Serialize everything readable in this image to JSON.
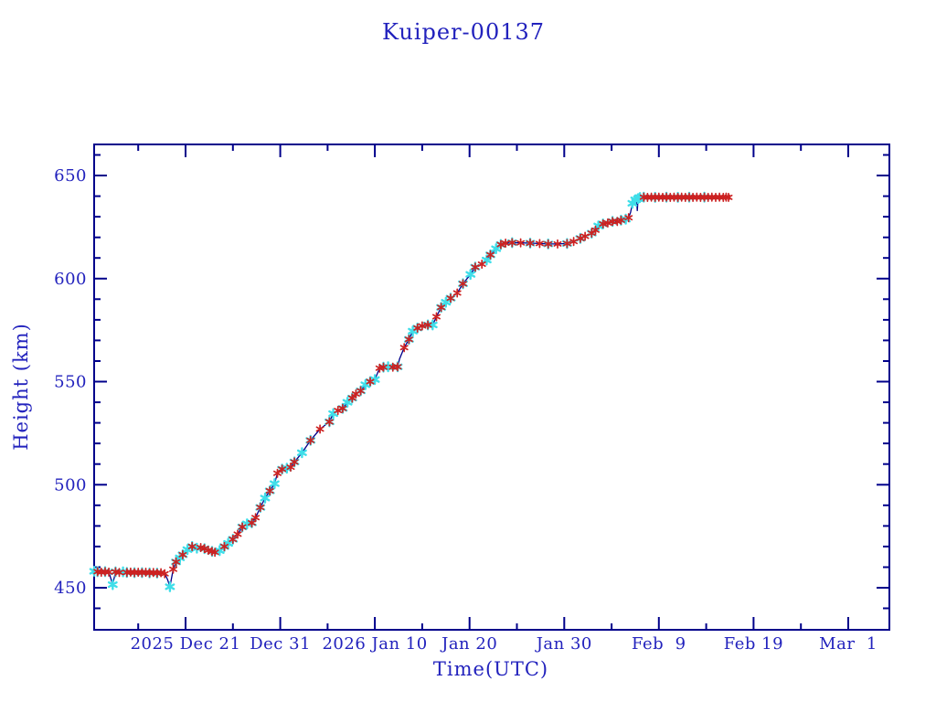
{
  "chart_data": {
    "type": "line",
    "title": "Kuiper-00137",
    "xlabel": "Time(UTC)",
    "ylabel": "Height (km)",
    "grid": false,
    "legend": null,
    "x_axis": {
      "unit": "days relative to 2025 Dec 21 00:00 UTC",
      "range": [
        -9.65,
        74.35
      ],
      "major_ticks": [
        {
          "t": 0,
          "label": "2025 Dec 21"
        },
        {
          "t": 10,
          "label": "Dec 31"
        },
        {
          "t": 20,
          "label": "2026 Jan 10"
        },
        {
          "t": 30,
          "label": "Jan 20"
        },
        {
          "t": 40,
          "label": "Jan 30"
        },
        {
          "t": 50,
          "label": "Feb  9"
        },
        {
          "t": 60,
          "label": "Feb 19"
        },
        {
          "t": 70,
          "label": "Mar  1"
        }
      ],
      "minor_ticks_t": [
        -5,
        5,
        15,
        25,
        35,
        45,
        55,
        65
      ]
    },
    "y_axis": {
      "unit": "km",
      "range": [
        430,
        665
      ],
      "major_ticks": [
        {
          "km": 450,
          "label": "450"
        },
        {
          "km": 500,
          "label": "500"
        },
        {
          "km": 550,
          "label": "550"
        },
        {
          "km": 600,
          "label": "600"
        },
        {
          "km": 650,
          "label": "650"
        }
      ],
      "minor_tick_step": 10
    },
    "colors": {
      "background": "#ffffff",
      "axis": "#00008b",
      "text": "#2222bd",
      "line": "#00008b",
      "marker_red": "#cc2222",
      "marker_cyan": "#3fdee9"
    },
    "series": [
      {
        "name": "height-km",
        "marker_types": {
          "r": "red asterisk",
          "c": "cyan asterisk",
          "rc": "red asterisk over cyan asterisk",
          "l": "line only"
        },
        "points_format": "[days_since_2025_Dec_21_UTC, height_km, marker]",
        "points": [
          [
            -9.65,
            458.0,
            "c"
          ],
          [
            -9.3,
            457.8,
            "rc"
          ],
          [
            -8.9,
            457.5,
            "r"
          ],
          [
            -8.5,
            457.8,
            "rc"
          ],
          [
            -8.1,
            457.6,
            "r"
          ],
          [
            -7.7,
            451.5,
            "c"
          ],
          [
            -7.4,
            457.7,
            "rc"
          ],
          [
            -7.0,
            457.4,
            "r"
          ],
          [
            -6.6,
            457.7,
            "c"
          ],
          [
            -6.2,
            457.4,
            "rc"
          ],
          [
            -5.8,
            457.6,
            "r"
          ],
          [
            -5.4,
            457.3,
            "rc"
          ],
          [
            -5.0,
            457.5,
            "r"
          ],
          [
            -4.6,
            457.3,
            "rc"
          ],
          [
            -4.2,
            457.5,
            "r"
          ],
          [
            -3.8,
            457.2,
            "rc"
          ],
          [
            -3.4,
            457.4,
            "r"
          ],
          [
            -3.0,
            457.1,
            "rc"
          ],
          [
            -2.6,
            457.3,
            "r"
          ],
          [
            -2.2,
            456.8,
            "r"
          ],
          [
            -1.9,
            454.0,
            "l"
          ],
          [
            -1.65,
            450.5,
            "c"
          ],
          [
            -1.3,
            459.0,
            "r"
          ],
          [
            -1.0,
            462.5,
            "rc"
          ],
          [
            -0.6,
            464.5,
            "c"
          ],
          [
            -0.3,
            466.0,
            "rc"
          ],
          [
            0.2,
            468.5,
            "c"
          ],
          [
            0.7,
            470.0,
            "rc"
          ],
          [
            1.2,
            469.2,
            "c"
          ],
          [
            1.6,
            469.5,
            "r"
          ],
          [
            2.0,
            469.0,
            "rc"
          ],
          [
            2.4,
            468.2,
            "r"
          ],
          [
            2.8,
            467.6,
            "rc"
          ],
          [
            3.1,
            467.2,
            "r"
          ],
          [
            3.6,
            468.0,
            "c"
          ],
          [
            4.1,
            470.0,
            "rc"
          ],
          [
            4.5,
            471.5,
            "c"
          ],
          [
            5.0,
            473.5,
            "rc"
          ],
          [
            5.5,
            476.0,
            "r"
          ],
          [
            6.0,
            479.5,
            "rc"
          ],
          [
            6.5,
            481.0,
            "c"
          ],
          [
            7.0,
            481.5,
            "rc"
          ],
          [
            7.4,
            484.0,
            "r"
          ],
          [
            7.9,
            489.0,
            "rc"
          ],
          [
            8.4,
            493.5,
            "c"
          ],
          [
            8.9,
            497.0,
            "rc"
          ],
          [
            9.4,
            500.5,
            "c"
          ],
          [
            9.7,
            505.5,
            "r"
          ],
          [
            10.2,
            507.5,
            "rc"
          ],
          [
            10.7,
            508.0,
            "c"
          ],
          [
            11.1,
            508.5,
            "r"
          ],
          [
            11.5,
            511.0,
            "rc"
          ],
          [
            12.3,
            515.5,
            "c"
          ],
          [
            13.2,
            521.5,
            "rc"
          ],
          [
            14.2,
            527.0,
            "r"
          ],
          [
            15.2,
            530.5,
            "rc"
          ],
          [
            15.6,
            534.5,
            "c"
          ],
          [
            16.1,
            536.0,
            "r"
          ],
          [
            16.6,
            537.0,
            "rc"
          ],
          [
            17.1,
            540.0,
            "c"
          ],
          [
            17.6,
            542.0,
            "rc"
          ],
          [
            18.0,
            544.0,
            "r"
          ],
          [
            18.5,
            545.5,
            "rc"
          ],
          [
            19.0,
            548.5,
            "c"
          ],
          [
            19.5,
            550.0,
            "rc"
          ],
          [
            20.0,
            551.0,
            "c"
          ],
          [
            20.5,
            556.5,
            "r"
          ],
          [
            20.9,
            557.0,
            "rc"
          ],
          [
            21.4,
            557.2,
            "c"
          ],
          [
            21.9,
            557.0,
            "r"
          ],
          [
            22.4,
            557.2,
            "rc"
          ],
          [
            22.6,
            561.0,
            "l"
          ],
          [
            23.1,
            566.5,
            "r"
          ],
          [
            23.6,
            570.5,
            "rc"
          ],
          [
            24.0,
            574.5,
            "c"
          ],
          [
            24.5,
            576.0,
            "rc"
          ],
          [
            25.0,
            577.0,
            "r"
          ],
          [
            25.6,
            577.5,
            "rc"
          ],
          [
            26.1,
            577.5,
            "c"
          ],
          [
            26.5,
            581.5,
            "r"
          ],
          [
            27.0,
            586.0,
            "rc"
          ],
          [
            27.5,
            588.5,
            "c"
          ],
          [
            28.0,
            590.5,
            "rc"
          ],
          [
            28.7,
            593.0,
            "r"
          ],
          [
            29.3,
            597.5,
            "rc"
          ],
          [
            30.1,
            602.0,
            "c"
          ],
          [
            30.6,
            605.5,
            "rc"
          ],
          [
            31.3,
            607.0,
            "r"
          ],
          [
            31.8,
            609.0,
            "c"
          ],
          [
            32.2,
            611.5,
            "rc"
          ],
          [
            32.8,
            614.5,
            "c"
          ],
          [
            33.3,
            616.5,
            "rc"
          ],
          [
            33.8,
            617.2,
            "r"
          ],
          [
            34.5,
            617.4,
            "rc"
          ],
          [
            35.4,
            617.3,
            "r"
          ],
          [
            36.4,
            617.2,
            "rc"
          ],
          [
            37.4,
            617.0,
            "r"
          ],
          [
            38.3,
            616.8,
            "rc"
          ],
          [
            39.3,
            616.8,
            "r"
          ],
          [
            40.3,
            617.0,
            "rc"
          ],
          [
            41.0,
            618.0,
            "r"
          ],
          [
            41.7,
            619.5,
            "rc"
          ],
          [
            42.2,
            620.5,
            "r"
          ],
          [
            42.9,
            622.0,
            "rc"
          ],
          [
            43.3,
            623.5,
            "r"
          ],
          [
            43.6,
            625.5,
            "c"
          ],
          [
            44.1,
            626.5,
            "rc"
          ],
          [
            44.6,
            627.0,
            "r"
          ],
          [
            45.1,
            627.7,
            "rc"
          ],
          [
            45.6,
            627.7,
            "r"
          ],
          [
            46.0,
            628.3,
            "rc"
          ],
          [
            46.5,
            628.8,
            "c"
          ],
          [
            46.8,
            629.5,
            "r"
          ],
          [
            47.0,
            632.0,
            "l"
          ],
          [
            47.2,
            636.5,
            "c"
          ],
          [
            47.5,
            638.2,
            "c"
          ],
          [
            47.65,
            638.8,
            "l"
          ],
          [
            47.72,
            632.8,
            "l"
          ],
          [
            47.8,
            638.8,
            "c"
          ],
          [
            48.0,
            639.3,
            "c"
          ],
          [
            48.4,
            639.5,
            "rc"
          ],
          [
            48.8,
            639.4,
            "r"
          ],
          [
            49.2,
            639.5,
            "r"
          ],
          [
            49.6,
            639.4,
            "rc"
          ],
          [
            50.0,
            639.5,
            "r"
          ],
          [
            50.4,
            639.4,
            "r"
          ],
          [
            50.8,
            639.5,
            "rc"
          ],
          [
            51.2,
            639.4,
            "r"
          ],
          [
            51.6,
            639.5,
            "r"
          ],
          [
            52.0,
            639.4,
            "rc"
          ],
          [
            52.4,
            639.5,
            "r"
          ],
          [
            52.8,
            639.4,
            "r"
          ],
          [
            53.2,
            639.5,
            "rc"
          ],
          [
            53.6,
            639.4,
            "r"
          ],
          [
            54.0,
            639.5,
            "r"
          ],
          [
            54.4,
            639.4,
            "r"
          ],
          [
            54.8,
            639.5,
            "rc"
          ],
          [
            55.2,
            639.4,
            "r"
          ],
          [
            55.6,
            639.5,
            "r"
          ],
          [
            56.0,
            639.4,
            "r"
          ],
          [
            56.4,
            639.5,
            "r"
          ],
          [
            56.8,
            639.4,
            "r"
          ],
          [
            57.1,
            639.5,
            "r"
          ],
          [
            57.35,
            639.4,
            "r"
          ]
        ]
      }
    ]
  }
}
